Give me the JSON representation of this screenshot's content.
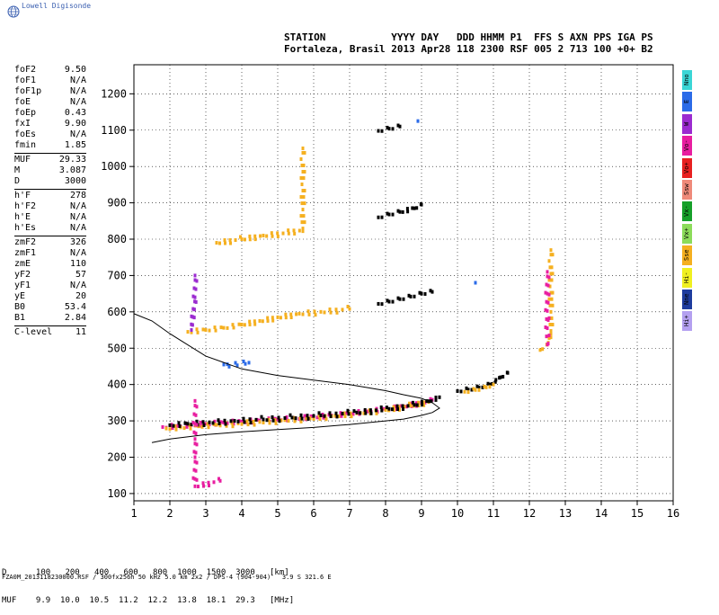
{
  "header": {
    "brand": "Lowell Digisonde",
    "line1": "STATION           YYYY DAY   DDD HHMM P1  FFS S AXN PPS IGA PS",
    "line2": "Fortaleza, Brasil 2013 Apr28 118 2300 RSF 005 2 713 100 +0+ B2"
  },
  "params": [
    [
      [
        "foF2",
        "9.50"
      ],
      [
        "foF1",
        "N/A"
      ],
      [
        "foF1p",
        "N/A"
      ],
      [
        "foE",
        "N/A"
      ],
      [
        "foEp",
        "0.43"
      ],
      [
        "fxI",
        "9.90"
      ],
      [
        "foEs",
        "N/A"
      ],
      [
        "fmin",
        "1.85"
      ]
    ],
    [
      [
        "MUF",
        "29.33"
      ],
      [
        "M",
        "3.087"
      ],
      [
        "D",
        "3000"
      ]
    ],
    [
      [
        "h'F",
        "278"
      ],
      [
        "h'F2",
        "N/A"
      ],
      [
        "h'E",
        "N/A"
      ],
      [
        "h'Es",
        "N/A"
      ]
    ],
    [
      [
        "zmF2",
        "326"
      ],
      [
        "zmF1",
        "N/A"
      ],
      [
        "zmE",
        "110"
      ],
      [
        "yF2",
        "57"
      ],
      [
        "yF1",
        "N/A"
      ],
      [
        "yE",
        "20"
      ],
      [
        "B0",
        "53.4"
      ],
      [
        "B1",
        "2.84"
      ]
    ],
    [
      [
        "C-level",
        "11"
      ]
    ]
  ],
  "legend": [
    {
      "label": "Nno",
      "color": "#3ad6d6"
    },
    {
      "label": "E",
      "color": "#2b6be8"
    },
    {
      "label": "W",
      "color": "#9b2bd0"
    },
    {
      "label": "Vo-",
      "color": "#e81ea0"
    },
    {
      "label": "Vo+",
      "color": "#e82020"
    },
    {
      "label": "Ssw",
      "color": "#ef8a7a"
    },
    {
      "label": "Vx-",
      "color": "#16a02a"
    },
    {
      "label": "Vx+",
      "color": "#8cdc5a"
    },
    {
      "label": "Sse",
      "color": "#f5b020"
    },
    {
      "label": "Hi-",
      "color": "#f0f020"
    },
    {
      "label": "Nne",
      "color": "#1e3c9e"
    },
    {
      "label": "Hi+",
      "color": "#b4a0f0"
    }
  ],
  "d_table": {
    "d_label": "D",
    "muf_label": "MUF",
    "d_values": [
      "100",
      "200",
      "400",
      "600",
      "800",
      "1000",
      "1500",
      "3000"
    ],
    "muf_values": [
      "9.9",
      "10.0",
      "10.5",
      "11.2",
      "12.2",
      "13.8",
      "18.1",
      "29.3"
    ],
    "d_unit": "[km]",
    "muf_unit": "[MHz]"
  },
  "footer": "FZA0M_2013118230000.RSF / 300fx256h 50 kHz 5.0 km 2x2 / DPS-4 (904-904)   3.9 S 321.6 E",
  "chart_data": {
    "type": "scatter",
    "xlim": [
      1,
      16
    ],
    "ylim": [
      80,
      1280
    ],
    "x_ticks": [
      1,
      2,
      3,
      4,
      5,
      6,
      7,
      8,
      9,
      10,
      11,
      12,
      13,
      14,
      15,
      16
    ],
    "y_ticks": [
      100,
      200,
      300,
      400,
      500,
      600,
      700,
      800,
      900,
      1000,
      1100,
      1200
    ],
    "grid": "dotted",
    "profile_curve": [
      [
        1.5,
        240
      ],
      [
        2,
        250
      ],
      [
        3,
        262
      ],
      [
        4,
        270
      ],
      [
        5,
        276
      ],
      [
        6,
        282
      ],
      [
        7,
        290
      ],
      [
        8,
        300
      ],
      [
        8.5,
        305
      ],
      [
        9,
        315
      ],
      [
        9.3,
        323
      ],
      [
        9.5,
        335
      ],
      [
        9.3,
        350
      ],
      [
        9,
        362
      ],
      [
        8.5,
        372
      ],
      [
        8,
        383
      ],
      [
        7,
        400
      ],
      [
        6,
        412
      ],
      [
        5,
        425
      ],
      [
        4,
        443
      ],
      [
        3,
        478
      ],
      [
        2,
        540
      ],
      [
        1.5,
        575
      ],
      [
        1,
        595
      ]
    ],
    "traces": [
      {
        "color": "#e81ea0",
        "points": [
          [
            1.8,
            283
          ],
          [
            2.2,
            286
          ],
          [
            2.6,
            289
          ],
          [
            3.0,
            292
          ],
          [
            3.5,
            295
          ],
          [
            4.0,
            298
          ],
          [
            4.5,
            301
          ],
          [
            5.0,
            304
          ],
          [
            5.5,
            307
          ],
          [
            6.0,
            311
          ],
          [
            6.5,
            315
          ],
          [
            7.0,
            320
          ],
          [
            7.5,
            326
          ],
          [
            8.0,
            332
          ],
          [
            8.5,
            340
          ],
          [
            9.0,
            350
          ],
          [
            9.3,
            358
          ]
        ]
      },
      {
        "color": "#f5b020",
        "points": [
          [
            1.9,
            279
          ],
          [
            2.3,
            282
          ],
          [
            2.8,
            285
          ],
          [
            3.3,
            289
          ],
          [
            3.9,
            293
          ],
          [
            4.5,
            297
          ],
          [
            5.2,
            302
          ],
          [
            5.9,
            307
          ],
          [
            6.6,
            314
          ],
          [
            7.3,
            322
          ],
          [
            8.0,
            330
          ],
          [
            8.7,
            342
          ],
          [
            9.2,
            352
          ]
        ]
      },
      {
        "color": "#000000",
        "points": [
          [
            2.0,
            288
          ],
          [
            2.5,
            292
          ],
          [
            3.1,
            296
          ],
          [
            3.8,
            300
          ],
          [
            4.6,
            304
          ],
          [
            5.4,
            309
          ],
          [
            6.2,
            315
          ],
          [
            7.2,
            323
          ],
          [
            8.1,
            333
          ],
          [
            8.8,
            344
          ],
          [
            9.2,
            354
          ],
          [
            9.5,
            365
          ]
        ]
      },
      {
        "color": "#000000",
        "points": [
          [
            10.0,
            382
          ],
          [
            10.3,
            386
          ],
          [
            10.6,
            392
          ],
          [
            10.9,
            400
          ],
          [
            11.2,
            420
          ],
          [
            11.4,
            432
          ]
        ]
      },
      {
        "color": "#f5b020",
        "points": [
          [
            10.2,
            380
          ],
          [
            10.5,
            385
          ],
          [
            10.8,
            392
          ],
          [
            11.0,
            400
          ]
        ]
      },
      {
        "color": "#f5b020",
        "points": [
          [
            2.5,
            545
          ],
          [
            3.0,
            550
          ],
          [
            3.5,
            556
          ],
          [
            4.0,
            565
          ],
          [
            4.5,
            575
          ],
          [
            5.0,
            585
          ],
          [
            5.6,
            595
          ],
          [
            6.2,
            600
          ],
          [
            7.0,
            608
          ]
        ]
      },
      {
        "color": "#000000",
        "points": [
          [
            7.8,
            622
          ],
          [
            8.1,
            628
          ],
          [
            8.4,
            635
          ],
          [
            8.7,
            642
          ],
          [
            9.0,
            650
          ],
          [
            9.3,
            655
          ]
        ]
      },
      {
        "color": "#000000",
        "points": [
          [
            7.8,
            860
          ],
          [
            8.1,
            868
          ],
          [
            8.4,
            875
          ],
          [
            8.8,
            885
          ],
          [
            9.0,
            895
          ]
        ]
      },
      {
        "color": "#000000",
        "points": [
          [
            7.8,
            1098
          ],
          [
            8.1,
            1104
          ],
          [
            8.4,
            1110
          ]
        ]
      },
      {
        "color": "#f5b020",
        "points": [
          [
            3.3,
            790
          ],
          [
            4.0,
            800
          ],
          [
            4.6,
            810
          ],
          [
            5.7,
            822
          ],
          [
            5.7,
            1050
          ],
          [
            12.3,
            495
          ],
          [
            12.5,
            510
          ],
          [
            12.6,
            540
          ],
          [
            12.6,
            770
          ]
        ]
      },
      {
        "color": "#e81ea0",
        "points": [
          [
            2.7,
            355
          ],
          [
            2.7,
            250
          ],
          [
            2.7,
            200
          ],
          [
            2.7,
            120
          ],
          [
            3.4,
            135
          ],
          [
            12.5,
            710
          ],
          [
            12.5,
            510
          ]
        ]
      },
      {
        "color": "#2b6be8",
        "points": [
          [
            10.5,
            680
          ],
          [
            8.9,
            1125
          ],
          [
            4.2,
            460
          ],
          [
            3.5,
            455
          ]
        ]
      },
      {
        "color": "#9b2bd0",
        "points": [
          [
            2.7,
            700
          ],
          [
            2.7,
            640
          ],
          [
            2.6,
            550
          ]
        ]
      }
    ]
  }
}
